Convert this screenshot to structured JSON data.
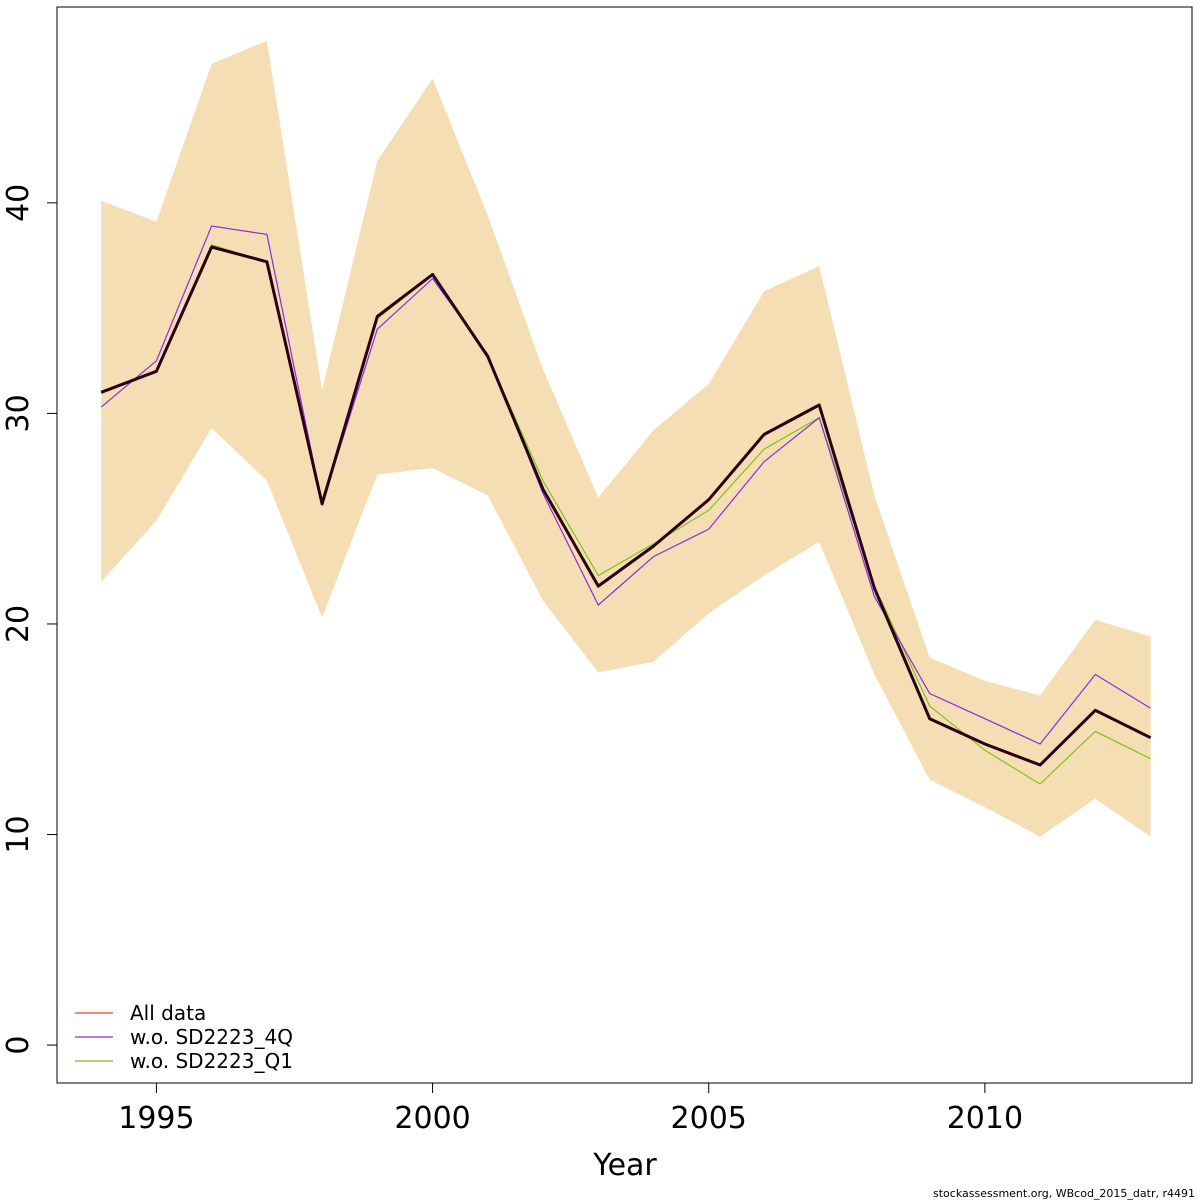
{
  "chart_data": {
    "type": "line",
    "xlabel": "Year",
    "ylabel": "",
    "title": "",
    "xlim": [
      1993.2,
      2013.75
    ],
    "ylim": [
      -1.8,
      49.3
    ],
    "x_ticks": [
      1995,
      2000,
      2005,
      2010
    ],
    "y_ticks": [
      0,
      10,
      20,
      30,
      40
    ],
    "x": [
      1994,
      1995,
      1996,
      1997,
      1998,
      1999,
      2000,
      2001,
      2002,
      2003,
      2004,
      2005,
      2006,
      2007,
      2008,
      2009,
      2010,
      2011,
      2012,
      2013
    ],
    "band": {
      "color": "#f5deb3",
      "lower": [
        22.0,
        24.9,
        29.3,
        26.8,
        20.3,
        27.1,
        27.4,
        26.1,
        21.1,
        17.7,
        18.2,
        20.5,
        22.3,
        23.9,
        17.6,
        12.6,
        11.3,
        9.9,
        11.7,
        9.9
      ],
      "upper": [
        40.1,
        39.1,
        46.6,
        47.7,
        31.1,
        42.0,
        45.9,
        39.4,
        32.1,
        26.0,
        29.2,
        31.4,
        35.8,
        37.0,
        26.1,
        18.4,
        17.3,
        16.6,
        20.2,
        19.4
      ]
    },
    "series": [
      {
        "name": "All data",
        "color": "#ff3b30",
        "values": [
          31.0,
          32.0,
          37.9,
          37.2,
          25.7,
          34.6,
          36.6,
          32.7,
          26.4,
          21.8,
          23.7,
          25.9,
          29.0,
          30.4,
          21.7,
          15.5,
          14.3,
          13.3,
          15.9,
          14.6
        ]
      },
      {
        "name": "w.o. SD2223_4Q",
        "color": "#8a2be2",
        "values": [
          30.3,
          32.5,
          38.9,
          38.5,
          25.7,
          34.0,
          36.4,
          32.8,
          26.2,
          20.9,
          23.2,
          24.5,
          27.7,
          29.8,
          21.3,
          16.7,
          15.5,
          14.3,
          17.6,
          16.0
        ]
      },
      {
        "name": "w.o. SD2223_Q1",
        "color": "#7fc41c",
        "values": [
          31.0,
          32.0,
          38.0,
          37.2,
          25.9,
          34.5,
          36.6,
          32.7,
          26.8,
          22.3,
          23.8,
          25.4,
          28.3,
          29.8,
          21.8,
          16.1,
          14.0,
          12.4,
          14.9,
          13.6
        ]
      }
    ],
    "estimate_line": {
      "color": "#2b0014",
      "values": [
        31.0,
        32.0,
        37.9,
        37.2,
        25.7,
        34.6,
        36.6,
        32.7,
        26.4,
        21.8,
        23.7,
        25.9,
        29.0,
        30.4,
        21.7,
        15.5,
        14.3,
        13.3,
        15.9,
        14.6
      ]
    },
    "legend_position": "bottom-left",
    "grid": false
  },
  "footer": "stockassessment.org, WBcod_2015_datr, r4491"
}
